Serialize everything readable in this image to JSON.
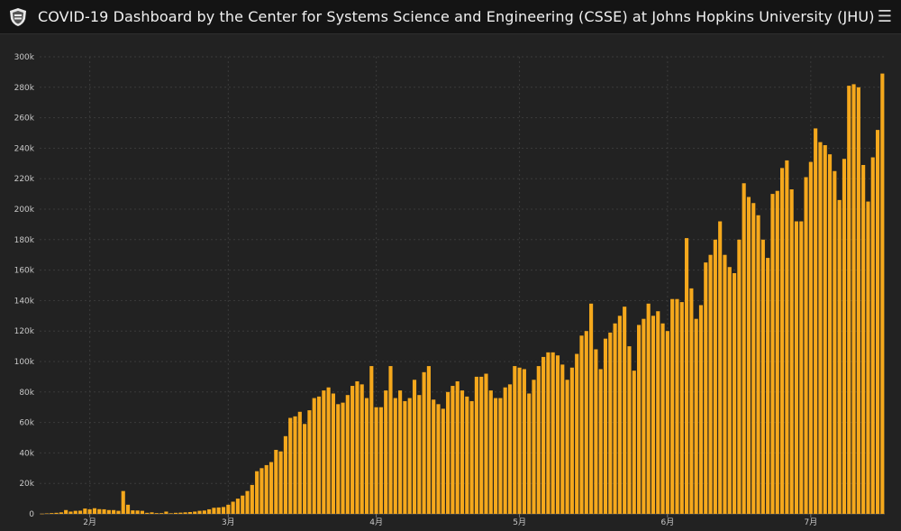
{
  "header": {
    "title": "COVID-19 Dashboard by the Center for Systems Science and Engineering (CSSE) at Johns Hopkins University (JHU)",
    "menu_icon": "hamburger-menu-icon",
    "logo_icon": "jhu-shield-icon"
  },
  "colors": {
    "bar": "#f5a81c",
    "background": "#222222",
    "grid": "#3b3b3b",
    "axis_text": "#c8c8c8"
  },
  "chart_data": {
    "type": "bar",
    "ylim": [
      0,
      300000
    ],
    "y_ticks": [
      0,
      20000,
      40000,
      60000,
      80000,
      100000,
      120000,
      140000,
      160000,
      180000,
      200000,
      220000,
      240000,
      260000,
      280000,
      300000
    ],
    "y_tick_labels": [
      "0",
      "20k",
      "40k",
      "60k",
      "80k",
      "100k",
      "120k",
      "140k",
      "160k",
      "180k",
      "200k",
      "220k",
      "240k",
      "260k",
      "280k",
      "300k"
    ],
    "x_ticks": [
      {
        "label": "2月",
        "index": 10
      },
      {
        "label": "3月",
        "index": 39
      },
      {
        "label": "4月",
        "index": 70
      },
      {
        "label": "5月",
        "index": 100
      },
      {
        "label": "6月",
        "index": 131
      },
      {
        "label": "7月",
        "index": 161
      }
    ],
    "grid": true,
    "values": [
      100,
      300,
      500,
      700,
      1000,
      2500,
      1500,
      2000,
      2100,
      3500,
      3000,
      3700,
      3100,
      3000,
      2500,
      2500,
      2000,
      15000,
      6000,
      2300,
      2200,
      2000,
      700,
      1000,
      500,
      500,
      1500,
      400,
      700,
      800,
      1000,
      1200,
      1500,
      2000,
      2200,
      3000,
      4000,
      4200,
      4500,
      6000,
      8000,
      10000,
      12000,
      15000,
      19000,
      28000,
      30000,
      32000,
      34000,
      42000,
      41000,
      51000,
      63000,
      64000,
      67000,
      59000,
      68000,
      76000,
      77000,
      81000,
      83000,
      79000,
      72000,
      73000,
      78000,
      84000,
      87000,
      85000,
      76000,
      97000,
      70000,
      70000,
      81000,
      97000,
      76000,
      81000,
      74000,
      76000,
      88000,
      78000,
      93000,
      97000,
      75000,
      72000,
      69000,
      80000,
      84000,
      87000,
      81000,
      77000,
      74000,
      90000,
      90000,
      92000,
      81000,
      76000,
      76000,
      83000,
      85000,
      97000,
      96000,
      95000,
      79000,
      88000,
      97000,
      103000,
      106000,
      106000,
      104000,
      98000,
      88000,
      96000,
      105000,
      117000,
      120000,
      138000,
      108000,
      95000,
      115000,
      119000,
      125000,
      130000,
      136000,
      110000,
      94000,
      124000,
      128000,
      138000,
      130000,
      133000,
      125000,
      120000,
      141000,
      141000,
      139000,
      181000,
      148000,
      128000,
      137000,
      165000,
      170000,
      180000,
      192000,
      170000,
      162000,
      158000,
      180000,
      217000,
      208000,
      204000,
      196000,
      180000,
      168000,
      210000,
      212000,
      227000,
      232000,
      213000,
      192000,
      192000,
      221000,
      231000,
      253000,
      244000,
      242000,
      236000,
      225000,
      206000,
      233000,
      281000,
      282000,
      280000,
      229000,
      205000,
      234000,
      252000,
      289000
    ]
  }
}
